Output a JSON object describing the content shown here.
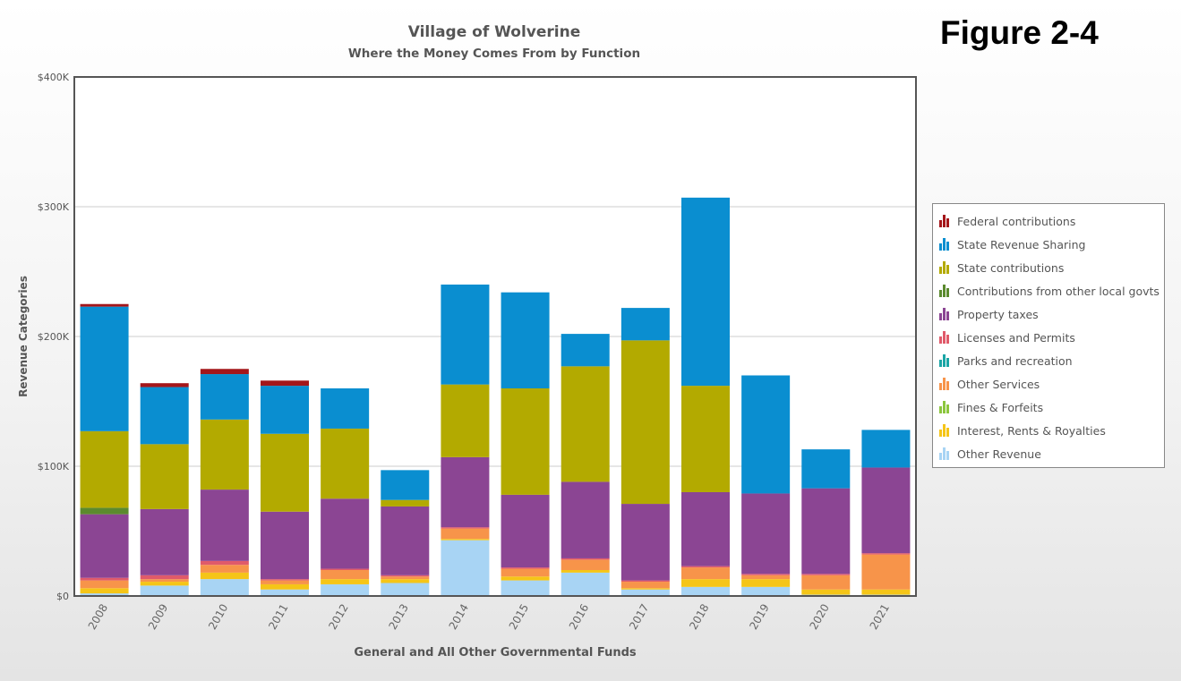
{
  "figure_label": "Figure 2-4",
  "chart_data": {
    "type": "bar",
    "stacked": true,
    "title": "Village of Wolverine",
    "subtitle": "Where the Money Comes From by Function",
    "xlabel": "General and All Other Governmental Funds",
    "ylabel": "Revenue Categories",
    "ylim": [
      0,
      400
    ],
    "y_ticks": [
      "$0",
      "$100K",
      "$200K",
      "$300K",
      "$400K"
    ],
    "y_tick_values": [
      0,
      100,
      200,
      300,
      400
    ],
    "unit": "thousands of dollars",
    "grid": true,
    "legend_position": "right",
    "categories": [
      "2008",
      "2009",
      "2010",
      "2011",
      "2012",
      "2013",
      "2014",
      "2015",
      "2016",
      "2017",
      "2018",
      "2019",
      "2020",
      "2021"
    ],
    "series": [
      {
        "name": "Other Revenue",
        "color": "#a8d4f4",
        "values": [
          2,
          8,
          13,
          5,
          9,
          10,
          43,
          12,
          18,
          5,
          7,
          7,
          1,
          1
        ]
      },
      {
        "name": "Interest, Rents & Royalties",
        "color": "#f5c518",
        "values": [
          4,
          3,
          5,
          4,
          4,
          3,
          1,
          3,
          2,
          1,
          6,
          6,
          4,
          4
        ]
      },
      {
        "name": "Fines & Forfeits",
        "color": "#8cc63e",
        "values": [
          0,
          0,
          0,
          0,
          0,
          0,
          0,
          0,
          0,
          0,
          0,
          0,
          0,
          0
        ]
      },
      {
        "name": "Other Services",
        "color": "#f7944a",
        "values": [
          6,
          2,
          6,
          3,
          7,
          2,
          8,
          6,
          8,
          5,
          9,
          3,
          11,
          27
        ]
      },
      {
        "name": "Parks and recreation",
        "color": "#1ba5a5",
        "values": [
          0,
          0,
          0,
          0,
          0,
          0,
          0,
          0,
          0,
          0,
          0,
          0,
          0,
          0
        ]
      },
      {
        "name": "Licenses and Permits",
        "color": "#e05a6a",
        "values": [
          2,
          3,
          3,
          1,
          1,
          1,
          1,
          1,
          1,
          1,
          1,
          1,
          1,
          1
        ]
      },
      {
        "name": "Property taxes",
        "color": "#8b4593",
        "values": [
          49,
          51,
          55,
          52,
          54,
          53,
          54,
          56,
          59,
          59,
          57,
          62,
          66,
          66
        ]
      },
      {
        "name": "Contributions from other local govts",
        "color": "#5b8a2e",
        "values": [
          5,
          0,
          0,
          0,
          0,
          0,
          0,
          0,
          0,
          0,
          0,
          0,
          0,
          0
        ]
      },
      {
        "name": "State contributions",
        "color": "#b3aa00",
        "values": [
          59,
          50,
          54,
          60,
          54,
          5,
          56,
          82,
          89,
          126,
          82,
          0,
          0,
          0
        ]
      },
      {
        "name": "State Revenue Sharing",
        "color": "#0a8ed0",
        "values": [
          96,
          44,
          35,
          37,
          31,
          23,
          77,
          74,
          25,
          25,
          145,
          91,
          30,
          29
        ]
      },
      {
        "name": "Federal contributions",
        "color": "#a4161a",
        "values": [
          2,
          3,
          4,
          4,
          0,
          0,
          0,
          0,
          0,
          0,
          0,
          0,
          0,
          0
        ]
      }
    ],
    "legend_order": [
      "Federal contributions",
      "State Revenue Sharing",
      "State contributions",
      "Contributions from other local govts",
      "Property taxes",
      "Licenses and Permits",
      "Parks and recreation",
      "Other Services",
      "Fines & Forfeits",
      "Interest, Rents & Royalties",
      "Other Revenue"
    ]
  }
}
